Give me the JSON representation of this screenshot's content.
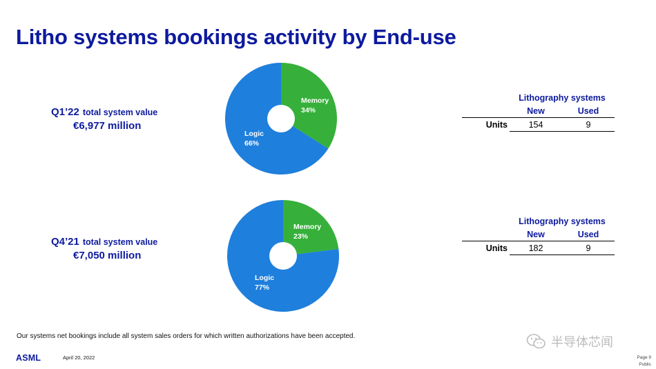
{
  "title": "Litho systems bookings activity by End-use",
  "charts": [
    {
      "quarter": "Q1’22",
      "total_label": "total system value",
      "total_value": "€6,977 million",
      "table": {
        "header": "Lithography systems",
        "col_new": "New",
        "col_used": "Used",
        "row_label": "Units",
        "new_value": "154",
        "used_value": "9"
      }
    },
    {
      "quarter": "Q4’21",
      "total_label": "total system value",
      "total_value": "€7,050 million",
      "table": {
        "header": "Lithography systems",
        "col_new": "New",
        "col_used": "Used",
        "row_label": "Units",
        "new_value": "182",
        "used_value": "9"
      }
    }
  ],
  "chart_data": [
    {
      "type": "pie",
      "title": "",
      "donut": true,
      "slices": [
        {
          "name": "Memory",
          "label": "34%",
          "value": 34,
          "color": "#36b03a"
        },
        {
          "name": "Logic",
          "label": "66%",
          "value": 66,
          "color": "#1f7fdc"
        }
      ]
    },
    {
      "type": "pie",
      "title": "",
      "donut": true,
      "slices": [
        {
          "name": "Memory",
          "label": "23%",
          "value": 23,
          "color": "#36b03a"
        },
        {
          "name": "Logic",
          "label": "77%",
          "value": 77,
          "color": "#1f7fdc"
        }
      ]
    }
  ],
  "footnote": "Our systems net bookings include all system sales orders for which written authorizations have been accepted.",
  "footer": {
    "logo": "ASML",
    "date": "April 20, 2022",
    "page": "Page 9",
    "classification": "Public",
    "watermark": "半导体芯闻",
    "watermark_icon": "wechat-icon"
  },
  "colors": {
    "title": "#0d1a9e",
    "memory": "#36b03a",
    "logic": "#1f7fdc"
  }
}
